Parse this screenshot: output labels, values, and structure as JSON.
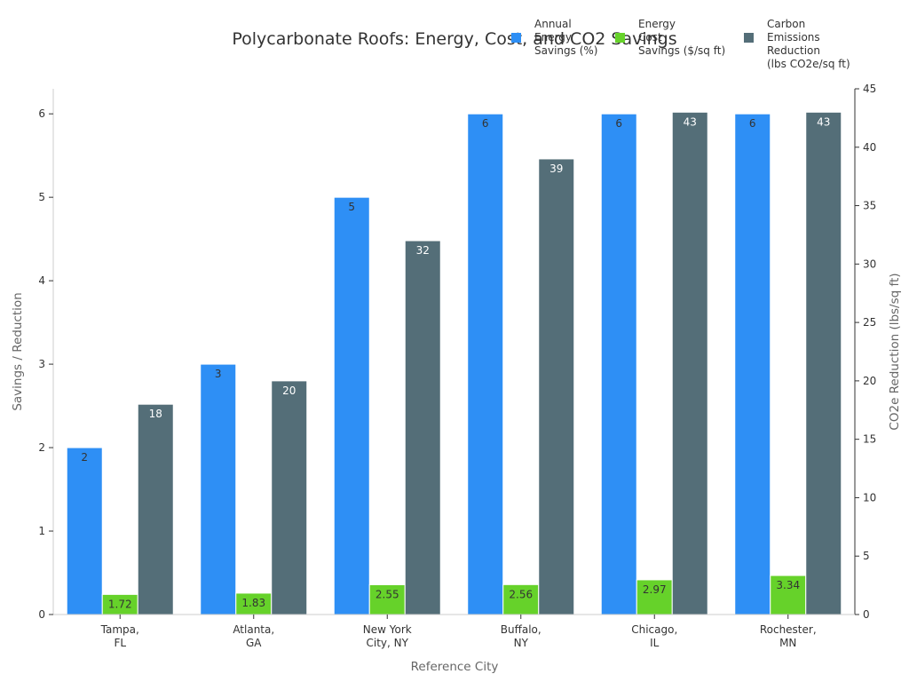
{
  "chart_data": {
    "type": "bar",
    "title": "Polycarbonate Roofs: Energy, Cost, and CO2 Savings",
    "xlabel": "Reference City",
    "ylabel": "Savings / Reduction",
    "y2label": "CO2e Reduction (lbs/sq ft)",
    "categories": [
      [
        "Tampa,",
        "FL"
      ],
      [
        "Atlanta,",
        "GA"
      ],
      [
        "New York",
        "City, NY"
      ],
      [
        "Buffalo,",
        "NY"
      ],
      [
        "Chicago,",
        "IL"
      ],
      [
        "Rochester,",
        "MN"
      ]
    ],
    "ylim": [
      0,
      6.3
    ],
    "y2lim": [
      0,
      45
    ],
    "yticks": [
      0,
      1,
      2,
      3,
      4,
      5,
      6
    ],
    "y2ticks": [
      0,
      5,
      10,
      15,
      20,
      25,
      30,
      35,
      40,
      45
    ],
    "series": [
      {
        "name": [
          "Annual",
          "Energy",
          "Savings (%)"
        ],
        "axis": "left",
        "color": "#2e8ff5",
        "label_color": "#333333",
        "values": [
          2,
          3,
          5,
          6,
          6,
          6
        ],
        "labels": [
          "2",
          "3",
          "5",
          "6",
          "6",
          "6"
        ]
      },
      {
        "name": [
          "Energy",
          "Cost",
          "Savings ($/sq ft)"
        ],
        "axis": "right",
        "color": "#66d22a",
        "label_color": "#333333",
        "values": [
          1.72,
          1.83,
          2.55,
          2.56,
          2.97,
          3.34
        ],
        "labels": [
          "1.72",
          "1.83",
          "2.55",
          "2.56",
          "2.97",
          "3.34"
        ]
      },
      {
        "name": [
          "Carbon",
          "Emissions",
          "Reduction",
          "(lbs CO2e/sq ft)"
        ],
        "axis": "right",
        "color": "#546e78",
        "label_color": "#ffffff",
        "values": [
          18,
          20,
          32,
          39,
          43,
          43
        ],
        "labels": [
          "18",
          "20",
          "32",
          "39",
          "43",
          "43"
        ]
      }
    ],
    "grid": false,
    "legend_position": "top-right"
  }
}
